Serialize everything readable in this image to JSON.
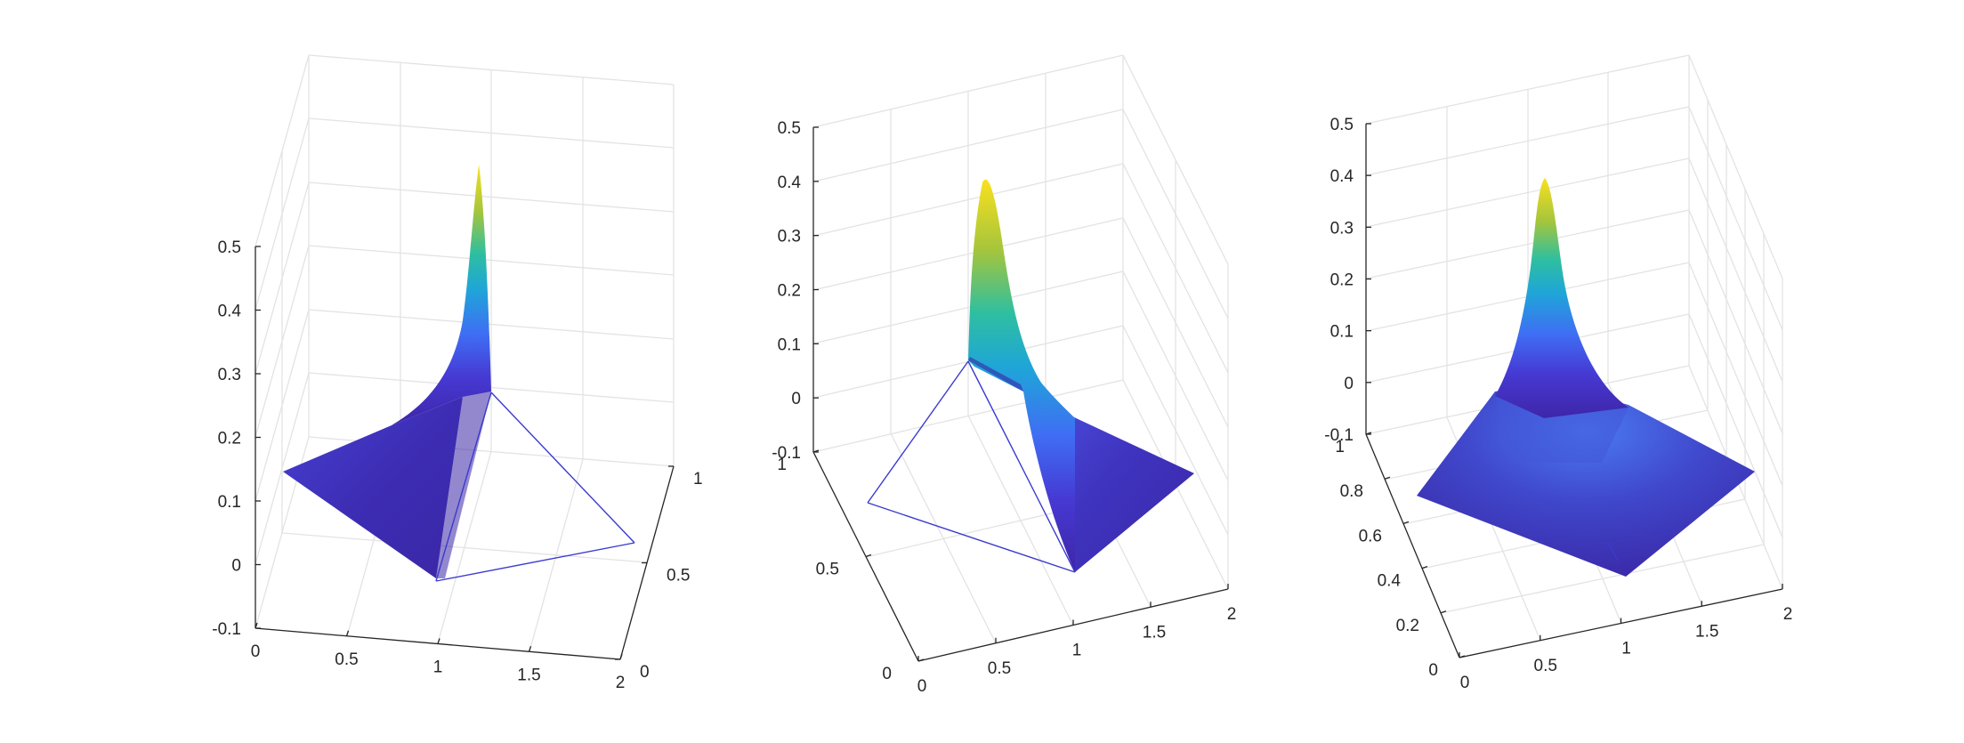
{
  "chart_data": [
    {
      "type": "surface",
      "title": "",
      "xlabel": "",
      "ylabel": "",
      "zlabel": "",
      "xlim": [
        0,
        2
      ],
      "ylim": [
        0,
        1
      ],
      "zlim": [
        -0.1,
        0.5
      ],
      "x_ticks": [
        "0",
        "0.5",
        "1",
        "1.5",
        "2"
      ],
      "y_ticks": [
        "0",
        "0.5",
        "1"
      ],
      "z_ticks": [
        "-0.1",
        "0",
        "0.1",
        "0.2",
        "0.3",
        "0.4",
        "0.5"
      ],
      "grid": true,
      "colormap": "parula",
      "peak": {
        "x": 1,
        "y": 1,
        "z": 0.5
      },
      "triangle_outline": [
        [
          1,
          0
        ],
        [
          2,
          0
        ],
        [
          1,
          1
        ]
      ],
      "series": [
        {
          "values": [
            0,
            0.5
          ]
        }
      ]
    },
    {
      "type": "surface",
      "title": "",
      "xlabel": "",
      "ylabel": "",
      "zlabel": "",
      "xlim": [
        0,
        2
      ],
      "ylim": [
        0,
        1
      ],
      "zlim": [
        -0.1,
        0.5
      ],
      "x_ticks": [
        "0",
        "0.5",
        "1",
        "1.5",
        "2"
      ],
      "y_ticks": [
        "0",
        "0.5",
        "1"
      ],
      "z_ticks": [
        "-0.1",
        "0",
        "0.1",
        "0.2",
        "0.3",
        "0.4",
        "0.5"
      ],
      "grid": true,
      "colormap": "parula",
      "peak": {
        "x": 1,
        "y": 1,
        "z": 0.4
      },
      "triangle_outline": [
        [
          0,
          1
        ],
        [
          1,
          1
        ],
        [
          1,
          0
        ]
      ],
      "series": [
        {
          "values": [
            0,
            0.4
          ]
        }
      ]
    },
    {
      "type": "surface",
      "title": "",
      "xlabel": "",
      "ylabel": "",
      "zlabel": "",
      "xlim": [
        0,
        2
      ],
      "ylim": [
        0,
        1
      ],
      "zlim": [
        -0.1,
        0.5
      ],
      "x_ticks": [
        "0",
        "0.5",
        "1",
        "1.5",
        "2"
      ],
      "y_ticks": [
        "0",
        "0.2",
        "0.4",
        "0.6",
        "0.8",
        "1"
      ],
      "z_ticks": [
        "-0.1",
        "0",
        "0.1",
        "0.2",
        "0.3",
        "0.4",
        "0.5"
      ],
      "grid": true,
      "colormap": "parula",
      "peak": {
        "x": 1,
        "y": 1,
        "z": 0.4
      },
      "series": [
        {
          "values": [
            0,
            0.4
          ]
        }
      ]
    }
  ],
  "colors": {
    "parula_low": "#3e26a8",
    "parula_mid1": "#3f6ef4",
    "parula_mid2": "#1fa5d8",
    "parula_mid3": "#2ebfa0",
    "parula_mid4": "#a5c53c",
    "parula_high": "#f9e01f",
    "edge": "#3a3ad0"
  }
}
